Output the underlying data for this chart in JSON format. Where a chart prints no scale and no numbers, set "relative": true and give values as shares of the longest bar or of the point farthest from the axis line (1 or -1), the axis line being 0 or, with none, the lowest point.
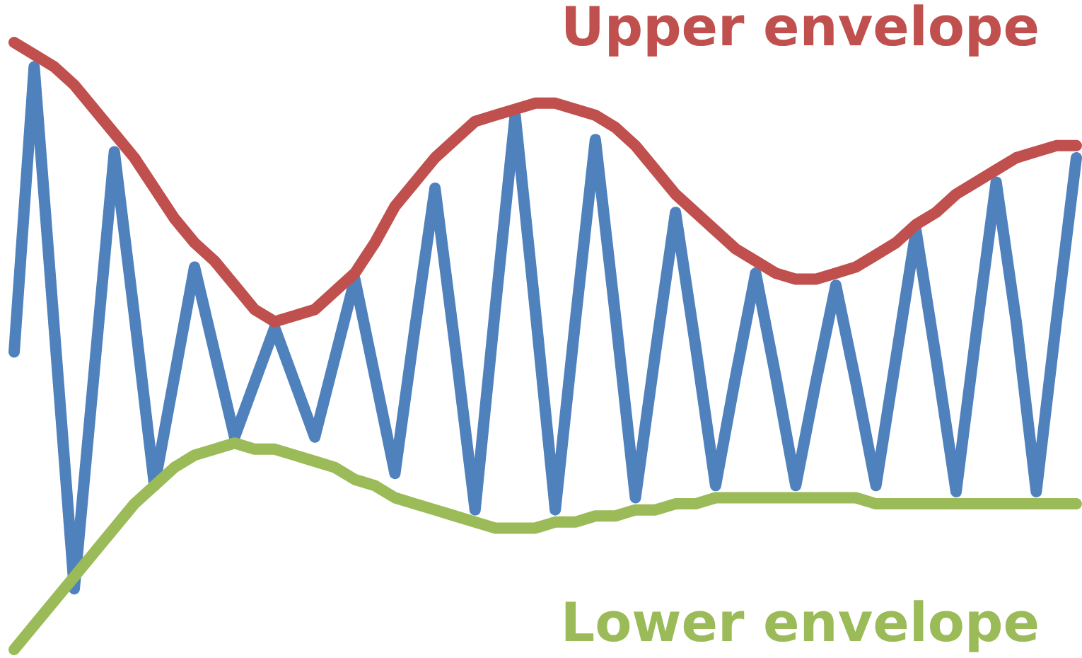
{
  "chart_data": {
    "type": "line",
    "relative": true,
    "marker": "none",
    "categories": [
      null,
      null,
      null,
      null,
      null,
      null,
      null,
      null,
      null,
      null,
      null,
      null,
      null,
      null,
      null,
      null,
      null,
      null,
      null,
      null,
      null,
      null,
      null,
      null,
      null,
      null,
      null,
      null,
      null,
      null,
      null,
      null,
      null,
      null,
      null,
      null,
      null,
      null,
      null,
      null,
      null,
      null,
      null,
      null,
      null,
      null,
      null,
      null,
      null,
      null,
      null,
      null,
      null,
      null
    ],
    "series": [
      {
        "color": "#4f81bd",
        "values": [
          0.49,
          0.96,
          0.53,
          0.1,
          0.46,
          0.82,
          0.55,
          0.27,
          0.45,
          0.63,
          0.49,
          0.35,
          0.44,
          0.53,
          0.44,
          0.35,
          0.48,
          0.61,
          0.45,
          0.29,
          0.53,
          0.76,
          0.5,
          0.23,
          0.56,
          0.88,
          0.56,
          0.23,
          0.54,
          0.84,
          0.55,
          0.25,
          0.49,
          0.72,
          0.5,
          0.27,
          0.45,
          0.62,
          0.45,
          0.27,
          0.44,
          0.6,
          0.44,
          0.27,
          0.48,
          0.69,
          0.48,
          0.26,
          0.52,
          0.77,
          0.54,
          0.26,
          0.54,
          0.81
        ]
      },
      {
        "name": "Lower envelope",
        "color": "#9bbb59",
        "values": [
          0,
          0.04,
          0.08,
          0.12,
          0.16,
          0.2,
          0.24,
          0.27,
          0.3,
          0.32,
          0.33,
          0.34,
          0.33,
          0.33,
          0.32,
          0.31,
          0.3,
          0.28,
          0.27,
          0.25,
          0.24,
          0.23,
          0.22,
          0.21,
          0.2,
          0.2,
          0.2,
          0.21,
          0.21,
          0.22,
          0.22,
          0.23,
          0.23,
          0.24,
          0.24,
          0.25,
          0.25,
          0.25,
          0.25,
          0.25,
          0.25,
          0.25,
          0.25,
          0.24,
          0.24,
          0.24,
          0.24,
          0.24,
          0.24,
          0.24,
          0.24,
          0.24,
          0.24,
          0.24
        ]
      },
      {
        "name": "Upper envelope",
        "color": "#c0504d",
        "values": [
          1,
          0.98,
          0.96,
          0.93,
          0.89,
          0.85,
          0.81,
          0.76,
          0.71,
          0.67,
          0.64,
          0.6,
          0.56,
          0.54,
          0.55,
          0.56,
          0.59,
          0.62,
          0.67,
          0.73,
          0.77,
          0.81,
          0.84,
          0.87,
          0.88,
          0.89,
          0.9,
          0.9,
          0.89,
          0.88,
          0.86,
          0.83,
          0.79,
          0.75,
          0.72,
          0.69,
          0.66,
          0.64,
          0.62,
          0.61,
          0.61,
          0.62,
          0.63,
          0.65,
          0.67,
          0.7,
          0.72,
          0.75,
          0.77,
          0.79,
          0.81,
          0.82,
          0.83,
          0.83
        ]
      }
    ]
  }
}
